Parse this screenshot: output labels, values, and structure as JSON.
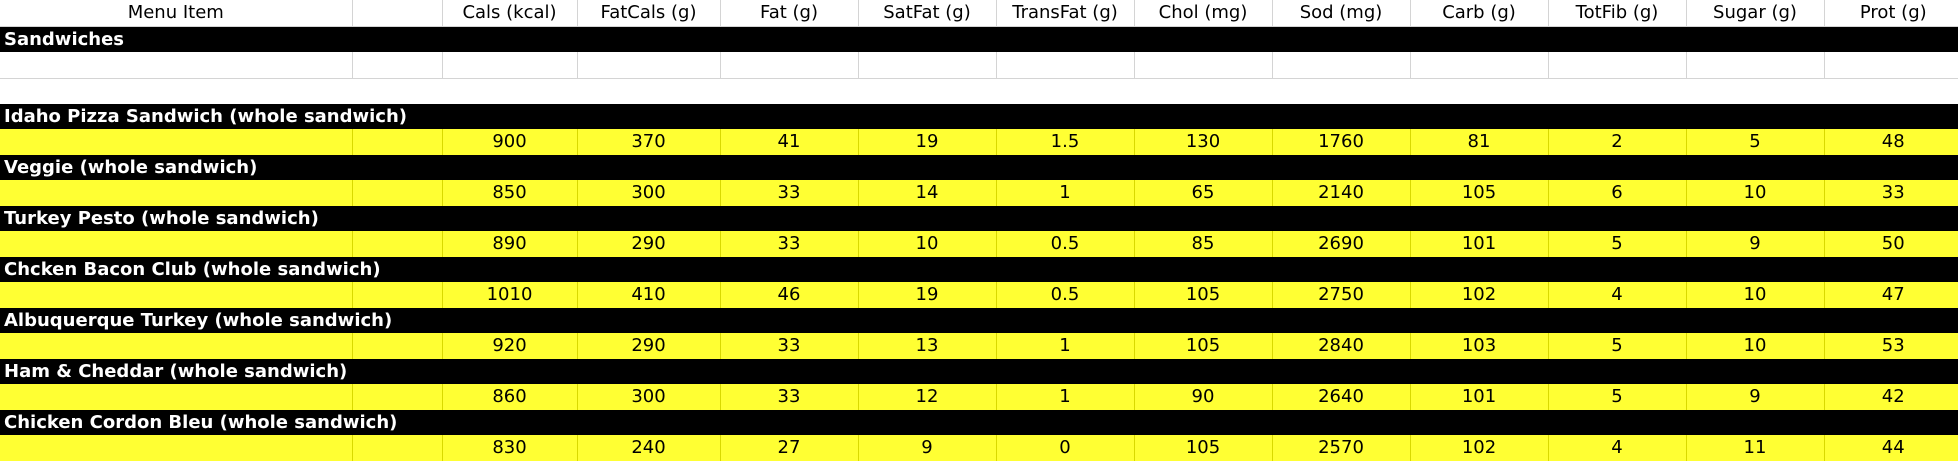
{
  "colors": {
    "header_background": "#ffffff",
    "item_bar_background": "#000000",
    "item_bar_text": "#ffffff",
    "values_background": "#ffff33"
  },
  "columns": [
    "Menu Item",
    "",
    "Cals (kcal)",
    "FatCals (g)",
    "Fat (g)",
    "SatFat (g)",
    "TransFat (g)",
    "Chol (mg)",
    "Sod (mg)",
    "Carb (g)",
    "TotFib (g)",
    "Sugar (g)",
    "Prot (g)"
  ],
  "section": "Sandwiches",
  "items": [
    {
      "name": "Idaho Pizza Sandwich (whole sandwich)",
      "values": [
        "900",
        "370",
        "41",
        "19",
        "1.5",
        "130",
        "1760",
        "81",
        "2",
        "5",
        "48"
      ]
    },
    {
      "name": "Veggie (whole sandwich)",
      "values": [
        "850",
        "300",
        "33",
        "14",
        "1",
        "65",
        "2140",
        "105",
        "6",
        "10",
        "33"
      ]
    },
    {
      "name": "Turkey Pesto (whole sandwich)",
      "values": [
        "890",
        "290",
        "33",
        "10",
        "0.5",
        "85",
        "2690",
        "101",
        "5",
        "9",
        "50"
      ]
    },
    {
      "name": "Chcken Bacon Club (whole sandwich)",
      "values": [
        "1010",
        "410",
        "46",
        "19",
        "0.5",
        "105",
        "2750",
        "102",
        "4",
        "10",
        "47"
      ]
    },
    {
      "name": "Albuquerque Turkey (whole sandwich)",
      "values": [
        "920",
        "290",
        "33",
        "13",
        "1",
        "105",
        "2840",
        "103",
        "5",
        "10",
        "53"
      ]
    },
    {
      "name": "Ham & Cheddar (whole sandwich)",
      "values": [
        "860",
        "300",
        "33",
        "12",
        "1",
        "90",
        "2640",
        "101",
        "5",
        "9",
        "42"
      ]
    },
    {
      "name": "Chicken Cordon Bleu (whole sandwich)",
      "values": [
        "830",
        "240",
        "27",
        "9",
        "0",
        "105",
        "2570",
        "102",
        "4",
        "11",
        "44"
      ]
    }
  ]
}
